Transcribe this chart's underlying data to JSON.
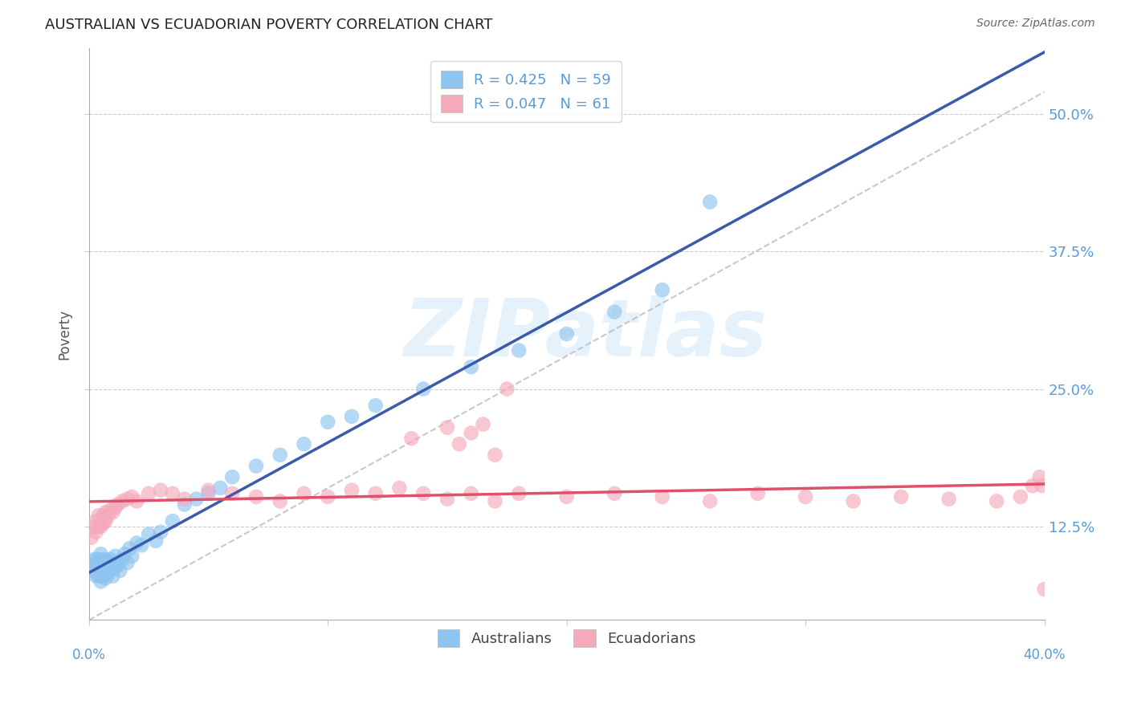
{
  "title": "AUSTRALIAN VS ECUADORIAN POVERTY CORRELATION CHART",
  "source": "Source: ZipAtlas.com",
  "ylabel": "Poverty",
  "ytick_labels": [
    "12.5%",
    "25.0%",
    "37.5%",
    "50.0%"
  ],
  "ytick_values": [
    0.125,
    0.25,
    0.375,
    0.5
  ],
  "xlim": [
    0.0,
    0.4
  ],
  "ylim": [
    0.04,
    0.56
  ],
  "watermark": "ZIPatlas",
  "legend_r1": "R = 0.425   N = 59",
  "legend_r2": "R = 0.047   N = 61",
  "legend_label1": "Australians",
  "legend_label2": "Ecuadorians",
  "color_australian": "#8EC4F0",
  "color_ecuadorian": "#F4AABB",
  "color_trend_au": "#3A5BAA",
  "color_trend_ec": "#E0506A",
  "color_trend_dashed": "#BBBBBB",
  "title_color": "#222222",
  "source_color": "#666666",
  "axis_tick_color": "#5B9BD5",
  "grid_color": "#CCCCCC",
  "au_x": [
    0.001,
    0.002,
    0.002,
    0.003,
    0.003,
    0.003,
    0.004,
    0.004,
    0.004,
    0.004,
    0.005,
    0.005,
    0.005,
    0.005,
    0.006,
    0.006,
    0.006,
    0.007,
    0.007,
    0.007,
    0.008,
    0.008,
    0.009,
    0.009,
    0.01,
    0.01,
    0.011,
    0.011,
    0.012,
    0.013,
    0.014,
    0.015,
    0.016,
    0.017,
    0.018,
    0.02,
    0.022,
    0.025,
    0.028,
    0.03,
    0.035,
    0.04,
    0.045,
    0.05,
    0.055,
    0.06,
    0.07,
    0.08,
    0.09,
    0.1,
    0.11,
    0.12,
    0.14,
    0.16,
    0.18,
    0.2,
    0.22,
    0.24,
    0.26
  ],
  "au_y": [
    0.085,
    0.09,
    0.095,
    0.08,
    0.085,
    0.095,
    0.08,
    0.085,
    0.09,
    0.095,
    0.075,
    0.08,
    0.09,
    0.1,
    0.08,
    0.085,
    0.095,
    0.078,
    0.085,
    0.095,
    0.082,
    0.09,
    0.085,
    0.095,
    0.08,
    0.092,
    0.088,
    0.098,
    0.09,
    0.085,
    0.095,
    0.1,
    0.092,
    0.105,
    0.098,
    0.11,
    0.108,
    0.118,
    0.112,
    0.12,
    0.13,
    0.145,
    0.15,
    0.155,
    0.16,
    0.17,
    0.18,
    0.19,
    0.2,
    0.22,
    0.225,
    0.235,
    0.25,
    0.27,
    0.285,
    0.3,
    0.32,
    0.34,
    0.42
  ],
  "ec_x": [
    0.001,
    0.002,
    0.003,
    0.003,
    0.004,
    0.004,
    0.005,
    0.005,
    0.006,
    0.006,
    0.007,
    0.007,
    0.008,
    0.009,
    0.01,
    0.011,
    0.012,
    0.014,
    0.016,
    0.018,
    0.02,
    0.025,
    0.03,
    0.035,
    0.04,
    0.05,
    0.06,
    0.07,
    0.08,
    0.09,
    0.1,
    0.11,
    0.12,
    0.13,
    0.14,
    0.15,
    0.16,
    0.17,
    0.18,
    0.2,
    0.22,
    0.24,
    0.26,
    0.28,
    0.3,
    0.32,
    0.34,
    0.36,
    0.38,
    0.39,
    0.395,
    0.398,
    0.399,
    0.4,
    0.135,
    0.15,
    0.155,
    0.16,
    0.165,
    0.17,
    0.175
  ],
  "ec_y": [
    0.115,
    0.125,
    0.12,
    0.13,
    0.125,
    0.135,
    0.125,
    0.13,
    0.128,
    0.135,
    0.13,
    0.138,
    0.135,
    0.14,
    0.138,
    0.142,
    0.145,
    0.148,
    0.15,
    0.152,
    0.148,
    0.155,
    0.158,
    0.155,
    0.15,
    0.158,
    0.155,
    0.152,
    0.148,
    0.155,
    0.152,
    0.158,
    0.155,
    0.16,
    0.155,
    0.15,
    0.155,
    0.148,
    0.155,
    0.152,
    0.155,
    0.152,
    0.148,
    0.155,
    0.152,
    0.148,
    0.152,
    0.15,
    0.148,
    0.152,
    0.162,
    0.17,
    0.162,
    0.068,
    0.205,
    0.215,
    0.2,
    0.21,
    0.218,
    0.19,
    0.25
  ]
}
